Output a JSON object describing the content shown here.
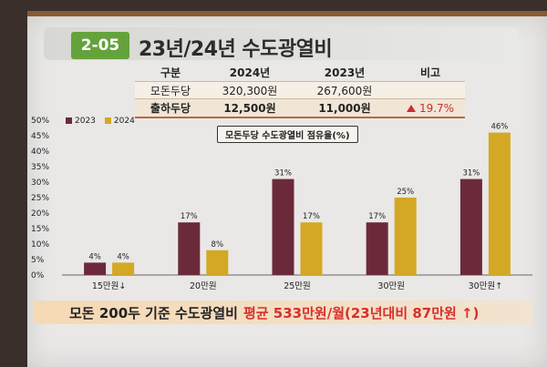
{
  "slide": {
    "badge": "2-05",
    "title": "23년/24년 수도광열비"
  },
  "summary_table": {
    "headers": [
      "구분",
      "2024년",
      "2023년",
      "비고"
    ],
    "rows": [
      {
        "label": "모돈두당",
        "v2024": "320,300원",
        "v2023": "267,600원",
        "note": ""
      },
      {
        "label": "출하두당",
        "v2024": "12,500원",
        "v2023": "11,000원",
        "note": "19.7%"
      }
    ]
  },
  "chart_data": {
    "type": "bar",
    "title": "모돈두당 수도광열비 점유율(%)",
    "categories": [
      "15만원↓",
      "20만원",
      "25만원",
      "30만원",
      "30만원↑"
    ],
    "series": [
      {
        "name": "2023",
        "values": [
          4,
          17,
          31,
          17,
          31
        ],
        "color": "#6b2a3a"
      },
      {
        "name": "2024",
        "values": [
          4,
          8,
          17,
          25,
          46
        ],
        "color": "#d4a824"
      }
    ],
    "value_labels": {
      "2023": [
        "4%",
        "17%",
        "31%",
        "17%",
        "31%"
      ],
      "2024": [
        "4%",
        "8%",
        "17%",
        "25%",
        "46%"
      ]
    },
    "ylim": [
      0,
      50
    ],
    "yticks": [
      "0%",
      "5%",
      "10%",
      "15%",
      "20%",
      "25%",
      "30%",
      "35%",
      "40%",
      "45%",
      "50%"
    ],
    "grid": false,
    "legend": "top-left"
  },
  "footer": {
    "lead": "모돈 200두 기준 수도광열비",
    "highlight": "평균 533만원/월(23년대비 87만원 ↑)"
  }
}
